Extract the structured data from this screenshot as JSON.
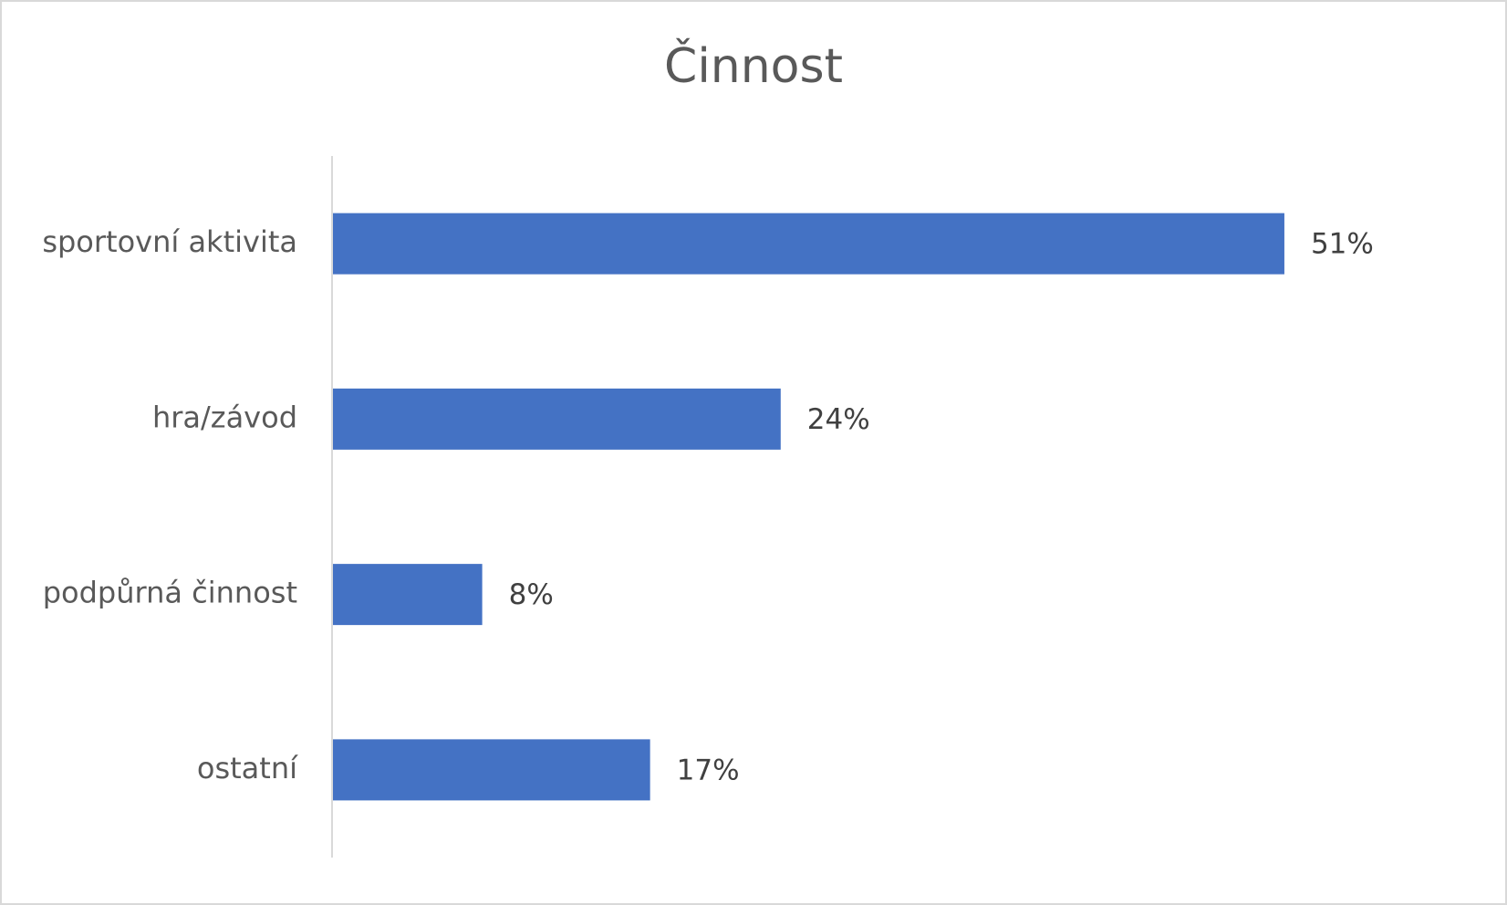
{
  "chart_data": {
    "type": "bar",
    "orientation": "horizontal",
    "title": "Činnost",
    "categories": [
      "sportovní aktivita",
      "hra/závod",
      "podpůrná činnost",
      "ostatní"
    ],
    "values": [
      51,
      24,
      8,
      17
    ],
    "value_labels": [
      "51%",
      "24%",
      "8%",
      "17%"
    ],
    "color": "#4472c4",
    "xlim": [
      0,
      60
    ]
  }
}
